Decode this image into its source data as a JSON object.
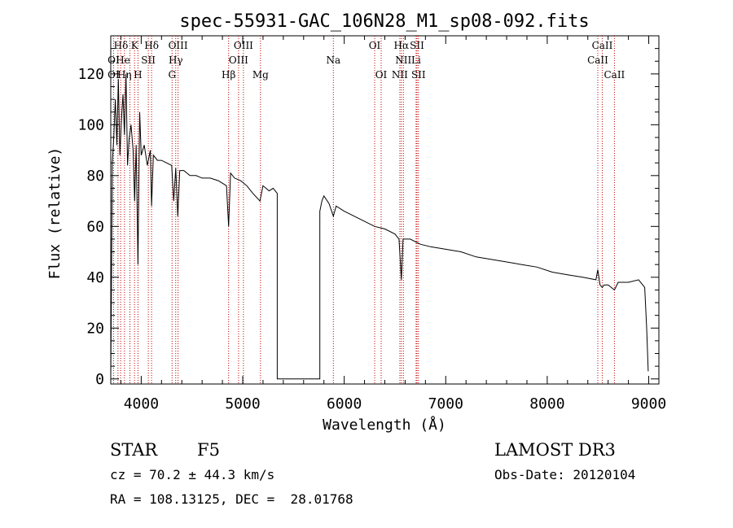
{
  "chart_data": {
    "type": "line",
    "title": "spec-55931-GAC_106N28_M1_sp08-092.fits",
    "xlabel": "Wavelength (Å)",
    "ylabel": "Flux (relative)",
    "xlim": [
      3700,
      9100
    ],
    "ylim": [
      -2,
      135
    ],
    "xticks": [
      4000,
      5000,
      6000,
      7000,
      8000,
      9000
    ],
    "xtick_labels": [
      "4000",
      "5000",
      "6000",
      "7000",
      "8000",
      "9000"
    ],
    "yticks": [
      0,
      20,
      40,
      60,
      80,
      100,
      120
    ],
    "ytick_labels": [
      "0",
      "20",
      "40",
      "60",
      "80",
      "100",
      "120"
    ],
    "grid": false,
    "series": [
      {
        "name": "flux",
        "x": [
          3700,
          3715,
          3730,
          3745,
          3760,
          3775,
          3790,
          3805,
          3820,
          3835,
          3850,
          3865,
          3880,
          3900,
          3920,
          3935,
          3950,
          3968,
          3985,
          4000,
          4030,
          4060,
          4090,
          4102,
          4120,
          4160,
          4200,
          4250,
          4300,
          4320,
          4340,
          4360,
          4380,
          4420,
          4480,
          4540,
          4600,
          4680,
          4760,
          4840,
          4861,
          4880,
          4920,
          4980,
          5040,
          5100,
          5170,
          5200,
          5260,
          5300,
          5320,
          5340,
          5340,
          5760,
          5760,
          5780,
          5800,
          5850,
          5893,
          5920,
          6000,
          6100,
          6200,
          6300,
          6400,
          6500,
          6540,
          6563,
          6580,
          6650,
          6750,
          6850,
          7000,
          7150,
          7300,
          7450,
          7600,
          7750,
          7900,
          8050,
          8200,
          8350,
          8480,
          8498,
          8520,
          8542,
          8560,
          8600,
          8662,
          8700,
          8800,
          8900,
          8960,
          8980,
          8995
        ],
        "values": [
          0,
          85,
          95,
          110,
          92,
          118,
          88,
          102,
          112,
          96,
          120,
          84,
          94,
          100,
          90,
          70,
          92,
          45,
          105,
          88,
          92,
          84,
          90,
          68,
          88,
          86,
          86,
          85,
          84,
          70,
          83,
          64,
          82,
          82,
          80,
          80,
          79,
          79,
          78,
          76,
          60,
          81,
          79,
          78,
          76,
          73,
          70,
          76,
          74,
          75,
          74,
          73,
          0,
          0,
          66,
          70,
          72,
          69,
          64,
          68,
          66,
          64,
          62,
          60,
          59,
          57,
          55,
          39,
          55,
          55,
          53,
          52,
          51,
          50,
          48,
          47,
          46,
          45,
          44,
          42,
          41,
          40,
          39,
          43,
          37,
          36,
          37,
          37,
          35,
          38,
          38,
          39,
          36,
          20,
          3
        ]
      }
    ],
    "line_groups": [
      {
        "row": 0,
        "names": [
          "Hδ",
          "K",
          "Hδ",
          "OIII",
          "OIII",
          "OI",
          "Hα",
          "SII",
          "CaII"
        ],
        "wavelengths": [
          3800,
          3934,
          4102,
          4363,
          5007,
          6300,
          6563,
          6717,
          8542
        ]
      },
      {
        "row": 1,
        "names": [
          "OI",
          "He",
          "SII",
          "Hγ",
          "OIII",
          "Na",
          "NII",
          "Li",
          "CaII"
        ],
        "wavelengths": [
          3727,
          3820,
          4070,
          4340,
          4959,
          5893,
          6583,
          6708,
          8498
        ]
      },
      {
        "row": 2,
        "names": [
          "OI",
          "Hη",
          "H",
          "G",
          "Hβ",
          "Mg",
          "OI",
          "NII",
          "SII",
          "CaII"
        ],
        "wavelengths": [
          3727,
          3835,
          3968,
          4304,
          4861,
          5175,
          6364,
          6548,
          6731,
          8662
        ]
      }
    ],
    "line_marker_wavelengths": [
      3727,
      3771,
      3798,
      3835,
      3889,
      3934,
      3968,
      4070,
      4102,
      4304,
      4340,
      4363,
      4861,
      4959,
      5007,
      5175,
      5893,
      6300,
      6364,
      6548,
      6563,
      6583,
      6708,
      6717,
      6731,
      8498,
      8542,
      8662
    ]
  },
  "info": {
    "object_class": "STAR",
    "subclass": "F5",
    "survey": "LAMOST DR3",
    "velocity": "cz = 70.2 ± 44.3 km/s",
    "obs_date": "Obs-Date: 20120104",
    "coords": "RA = 108.13125, DEC =  28.01768"
  },
  "colors": {
    "axis": "#000000",
    "spectrum": "#000000",
    "line_marker": "#c00000"
  }
}
